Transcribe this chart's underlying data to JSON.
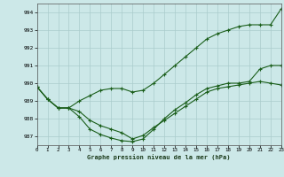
{
  "title": "Graphe pression niveau de la mer (hPa)",
  "bg_color": "#cce8e8",
  "grid_color": "#aacccc",
  "line_color": "#1a5e1a",
  "xlim": [
    0,
    23
  ],
  "ylim": [
    986.5,
    994.5
  ],
  "yticks": [
    987,
    988,
    989,
    990,
    991,
    992,
    993,
    994
  ],
  "xticks": [
    0,
    1,
    2,
    3,
    4,
    5,
    6,
    7,
    8,
    9,
    10,
    11,
    12,
    13,
    14,
    15,
    16,
    17,
    18,
    19,
    20,
    21,
    22,
    23
  ],
  "xtick_labels": [
    "0",
    "1",
    "2",
    "3",
    "4",
    "5",
    "6",
    "7",
    "8",
    "9",
    "10",
    "11",
    "12",
    "13",
    "14",
    "15",
    "16",
    "17",
    "18",
    "19",
    "20",
    "21",
    "22",
    "23"
  ],
  "series1_x": [
    0,
    1,
    2,
    3,
    4,
    5,
    6,
    7,
    8,
    9,
    10,
    11,
    12,
    13,
    14,
    15,
    16,
    17,
    18,
    19,
    20,
    21,
    22,
    23
  ],
  "series1_y": [
    989.8,
    989.1,
    988.6,
    988.6,
    989.0,
    989.3,
    989.6,
    989.7,
    989.7,
    989.5,
    989.6,
    990.0,
    990.5,
    991.0,
    991.5,
    992.0,
    992.5,
    992.8,
    993.0,
    993.2,
    993.3,
    993.3,
    993.3,
    994.2
  ],
  "series2_x": [
    0,
    1,
    2,
    3,
    4,
    5,
    6,
    7,
    8,
    9,
    10,
    11,
    12,
    13,
    14,
    15,
    16,
    17,
    18,
    19,
    20,
    21,
    22,
    23
  ],
  "series2_y": [
    989.8,
    989.1,
    988.6,
    988.6,
    988.4,
    987.9,
    987.6,
    987.4,
    987.2,
    986.85,
    987.05,
    987.5,
    987.9,
    988.3,
    988.7,
    989.1,
    989.5,
    989.7,
    989.8,
    989.9,
    990.0,
    990.1,
    990.0,
    989.9
  ],
  "series3_x": [
    0,
    1,
    2,
    3,
    4,
    5,
    6,
    7,
    8,
    9,
    10,
    11,
    12,
    13,
    14,
    15,
    16,
    17,
    18,
    19,
    20,
    21,
    22,
    23
  ],
  "series3_y": [
    989.8,
    989.1,
    988.6,
    988.6,
    988.1,
    987.4,
    987.1,
    986.9,
    986.75,
    986.7,
    986.85,
    987.4,
    988.0,
    988.5,
    988.9,
    989.35,
    989.7,
    989.85,
    990.0,
    990.0,
    990.1,
    990.8,
    991.0,
    991.0
  ]
}
